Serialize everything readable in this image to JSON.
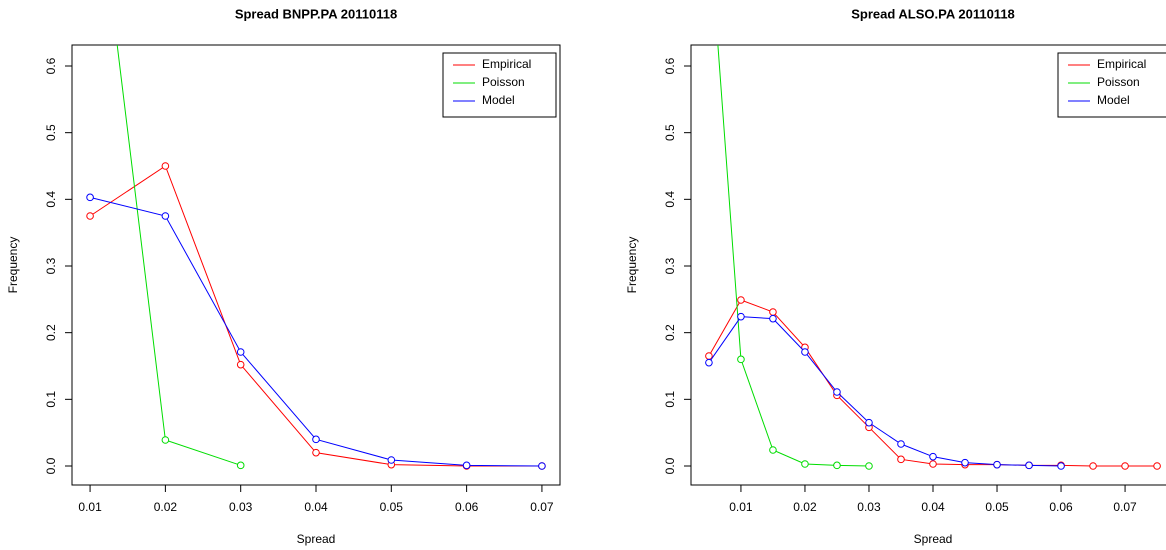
{
  "chart_data": [
    {
      "type": "line",
      "title": "Spread BNPP.PA 20110118",
      "x_label": "Spread",
      "y_label": "Frequency",
      "xlim": [
        0.0076,
        0.0724
      ],
      "ylim": [
        -0.0285,
        0.6315
      ],
      "xticks": [
        0.01,
        0.02,
        0.03,
        0.04,
        0.05,
        0.06,
        0.07
      ],
      "yticks": [
        {
          "value": 0,
          "label": "0.0"
        },
        0.1,
        0.2,
        0.3,
        0.4,
        0.5,
        0.6
      ],
      "legend": "topright",
      "series": [
        {
          "name": "Empirical",
          "color": "#ff0000",
          "x": [
            0.01,
            0.02,
            0.03,
            0.04,
            0.05,
            0.06,
            0.07
          ],
          "values": [
            0.375,
            0.45,
            0.152,
            0.02,
            0.002,
            0,
            0
          ]
        },
        {
          "name": "Poisson",
          "color": "#00dd00",
          "x": [
            0.01,
            0.02,
            0.03
          ],
          "values": [
            0.965,
            0.039,
            0.001
          ]
        },
        {
          "name": "Model",
          "color": "#0000ff",
          "x": [
            0.01,
            0.02,
            0.03,
            0.04,
            0.05,
            0.06,
            0.07
          ],
          "values": [
            0.403,
            0.375,
            0.171,
            0.04,
            0.009,
            0.001,
            0
          ]
        }
      ]
    },
    {
      "type": "line",
      "title": "Spread ALSO.PA 20110118",
      "x_label": "Spread",
      "y_label": "Frequency",
      "xlim": [
        0.0022,
        0.0778
      ],
      "ylim": [
        -0.0285,
        0.6315
      ],
      "xticks": [
        0.01,
        0.02,
        0.03,
        0.04,
        0.05,
        0.06,
        0.07
      ],
      "yticks": [
        {
          "value": 0,
          "label": "0.0"
        },
        0.1,
        0.2,
        0.3,
        0.4,
        0.5,
        0.6
      ],
      "legend": "topright",
      "series": [
        {
          "name": "Empirical",
          "color": "#ff0000",
          "x": [
            0.005,
            0.01,
            0.015,
            0.02,
            0.025,
            0.03,
            0.035,
            0.04,
            0.045,
            0.05,
            0.055,
            0.06,
            0.065,
            0.07,
            0.075
          ],
          "values": [
            0.165,
            0.249,
            0.231,
            0.178,
            0.106,
            0.058,
            0.01,
            0.003,
            0.002,
            0.002,
            0.001,
            0.001,
            0,
            0,
            0
          ]
        },
        {
          "name": "Poisson",
          "color": "#00dd00",
          "x": [
            0.005,
            0.01,
            0.015,
            0.02,
            0.025,
            0.03
          ],
          "values": [
            0.815,
            0.16,
            0.024,
            0.003,
            0.001,
            0
          ]
        },
        {
          "name": "Model",
          "color": "#0000ff",
          "x": [
            0.005,
            0.01,
            0.015,
            0.02,
            0.025,
            0.03,
            0.035,
            0.04,
            0.045,
            0.05,
            0.055,
            0.06
          ],
          "values": [
            0.155,
            0.224,
            0.221,
            0.171,
            0.111,
            0.065,
            0.033,
            0.014,
            0.005,
            0.002,
            0.001,
            0
          ]
        }
      ]
    }
  ]
}
